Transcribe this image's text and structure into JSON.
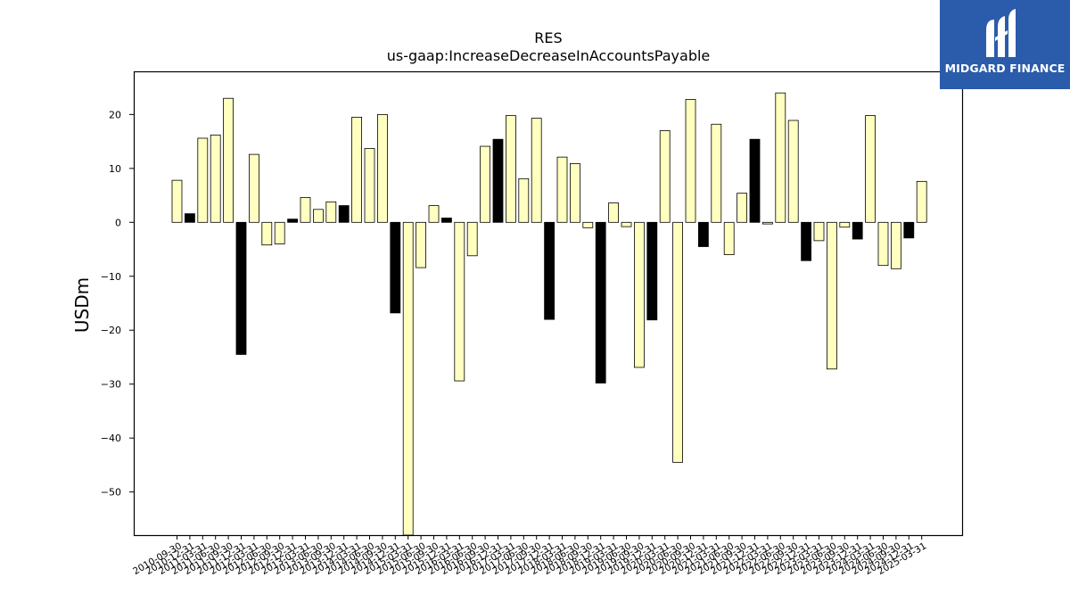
{
  "chart_data": {
    "type": "bar",
    "title": "RES",
    "subtitle": "us-gaap:IncreaseDecreaseInAccountsPayable",
    "xlabel": "",
    "ylabel": "USDm",
    "ylim": [
      -58,
      28
    ],
    "yticks": [
      20,
      10,
      0,
      -10,
      -20,
      -30,
      -40,
      -50
    ],
    "ytick_labels": [
      "20",
      "10",
      "0",
      "−10",
      "−20",
      "−30",
      "−40",
      "−50"
    ],
    "grid": false,
    "colors": {
      "positive_quarter": "#ffffc0",
      "annual_q4": "#000000",
      "edge": "#000000"
    },
    "categories": [
      "2010-09-30",
      "2010-12-31",
      "2011-03-31",
      "2011-06-30",
      "2011-09-30",
      "2011-12-31",
      "2012-03-31",
      "2012-06-30",
      "2012-09-30",
      "2012-12-31",
      "2013-03-31",
      "2013-06-30",
      "2013-09-30",
      "2013-12-31",
      "2014-03-31",
      "2014-06-30",
      "2014-09-30",
      "2014-12-31",
      "2015-03-31",
      "2015-06-30",
      "2015-09-30",
      "2015-12-31",
      "2016-03-31",
      "2016-06-30",
      "2016-09-30",
      "2016-12-31",
      "2017-03-31",
      "2017-06-30",
      "2017-09-30",
      "2017-12-31",
      "2018-03-31",
      "2018-06-30",
      "2018-09-30",
      "2018-12-31",
      "2019-03-31",
      "2019-06-30",
      "2019-09-30",
      "2019-12-31",
      "2020-03-31",
      "2020-06-30",
      "2020-09-30",
      "2020-12-31",
      "2021-03-31",
      "2021-06-30",
      "2021-09-30",
      "2021-12-31",
      "2022-03-31",
      "2022-06-30",
      "2022-09-30",
      "2022-12-31",
      "2023-03-31",
      "2023-06-30",
      "2023-09-30",
      "2023-12-31",
      "2024-03-31",
      "2024-06-30",
      "2024-09-30",
      "2024-12-31",
      "2025-03-31"
    ],
    "values": [
      7.8,
      1.6,
      15.6,
      16.2,
      23.0,
      -24.5,
      12.6,
      -4.2,
      -4.0,
      0.6,
      4.6,
      2.4,
      3.8,
      3.1,
      19.5,
      13.7,
      20.0,
      -16.8,
      -58.0,
      -8.4,
      3.1,
      0.8,
      -29.4,
      -6.2,
      14.1,
      15.4,
      19.8,
      8.1,
      19.3,
      -18.0,
      12.1,
      10.9,
      -1.0,
      -29.8,
      3.6,
      -0.8,
      -26.9,
      -18.1,
      17.0,
      -44.5,
      22.8,
      -4.5,
      18.2,
      -6.0,
      5.4,
      15.4,
      -0.3,
      24.0,
      18.9,
      -7.1,
      -3.4,
      -27.2,
      -0.9,
      -3.1,
      19.8,
      -8.0,
      -8.6,
      -2.9,
      7.6
    ]
  },
  "logo": {
    "brand": "MIDGARD FINANCE",
    "icon": "midgard-logo-icon",
    "background": "#2b5bab"
  }
}
